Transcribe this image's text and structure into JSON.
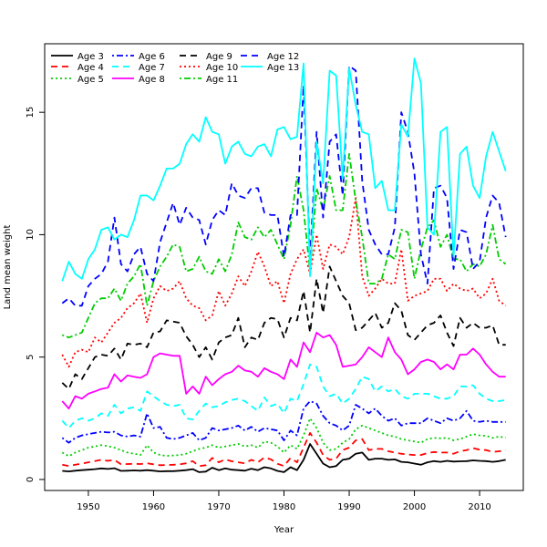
{
  "chart_data": {
    "type": "line",
    "title": "",
    "xlabel": "Year",
    "ylabel": "Land mean weight",
    "xlim": [
      1943.3,
      2016.7
    ],
    "ylim": [
      -0.45,
      17.8
    ],
    "xticks": [
      1950,
      1960,
      1970,
      1980,
      1990,
      2000,
      2010
    ],
    "yticks": [
      0,
      5,
      10,
      15
    ],
    "grid": false,
    "legend_position": "top-left",
    "x": [
      1946,
      1947,
      1948,
      1949,
      1950,
      1951,
      1952,
      1953,
      1954,
      1955,
      1956,
      1957,
      1958,
      1959,
      1960,
      1961,
      1962,
      1963,
      1964,
      1965,
      1966,
      1967,
      1968,
      1969,
      1970,
      1971,
      1972,
      1973,
      1974,
      1975,
      1976,
      1977,
      1978,
      1979,
      1980,
      1981,
      1982,
      1983,
      1984,
      1985,
      1986,
      1987,
      1988,
      1989,
      1990,
      1991,
      1992,
      1993,
      1994,
      1995,
      1996,
      1997,
      1998,
      1999,
      2000,
      2001,
      2002,
      2003,
      2004,
      2005,
      2006,
      2007,
      2008,
      2009,
      2010,
      2011,
      2012,
      2013,
      2014
    ],
    "series": [
      {
        "name": "Age 3",
        "color": "#000000",
        "dash": "solid",
        "values": [
          0.35,
          0.33,
          0.36,
          0.38,
          0.4,
          0.42,
          0.45,
          0.43,
          0.46,
          0.35,
          0.36,
          0.37,
          0.36,
          0.38,
          0.36,
          0.33,
          0.34,
          0.34,
          0.36,
          0.38,
          0.42,
          0.3,
          0.32,
          0.48,
          0.38,
          0.45,
          0.4,
          0.38,
          0.36,
          0.44,
          0.38,
          0.5,
          0.45,
          0.35,
          0.3,
          0.5,
          0.38,
          0.8,
          1.45,
          1.05,
          0.65,
          0.5,
          0.55,
          0.8,
          0.85,
          1.05,
          1.1,
          0.8,
          0.85,
          0.85,
          0.8,
          0.82,
          0.72,
          0.7,
          0.65,
          0.6,
          0.7,
          0.75,
          0.72,
          0.76,
          0.73,
          0.74,
          0.75,
          0.78,
          0.76,
          0.75,
          0.72,
          0.75,
          0.8
        ]
      },
      {
        "name": "Age 4",
        "color": "#ff0000",
        "dash": "dashed",
        "values": [
          0.6,
          0.55,
          0.6,
          0.65,
          0.7,
          0.75,
          0.8,
          0.76,
          0.8,
          0.62,
          0.63,
          0.64,
          0.63,
          0.66,
          0.62,
          0.58,
          0.59,
          0.6,
          0.62,
          0.66,
          0.75,
          0.55,
          0.58,
          0.88,
          0.7,
          0.82,
          0.74,
          0.7,
          0.66,
          0.8,
          0.7,
          0.9,
          0.82,
          0.64,
          0.55,
          0.88,
          0.7,
          1.3,
          1.9,
          1.5,
          1.0,
          0.8,
          0.85,
          1.2,
          1.3,
          1.6,
          1.65,
          1.2,
          1.25,
          1.25,
          1.15,
          1.1,
          1.05,
          1.02,
          1.0,
          1.0,
          1.08,
          1.12,
          1.1,
          1.1,
          1.05,
          1.15,
          1.2,
          1.28,
          1.22,
          1.2,
          1.12,
          1.15,
          1.2
        ]
      },
      {
        "name": "Age 5",
        "color": "#00cd00",
        "dash": "dotted",
        "values": [
          1.1,
          0.95,
          1.1,
          1.2,
          1.3,
          1.35,
          1.4,
          1.36,
          1.3,
          1.2,
          1.1,
          1.05,
          1.0,
          1.4,
          1.1,
          1.0,
          0.96,
          0.98,
          1.0,
          1.05,
          1.15,
          1.25,
          1.3,
          1.4,
          1.3,
          1.35,
          1.4,
          1.45,
          1.35,
          1.4,
          1.3,
          1.55,
          1.5,
          1.35,
          1.1,
          1.4,
          1.25,
          1.8,
          2.5,
          2.1,
          1.5,
          1.2,
          1.25,
          1.5,
          1.65,
          2.05,
          2.2,
          2.1,
          2.0,
          1.9,
          1.8,
          1.75,
          1.65,
          1.6,
          1.55,
          1.5,
          1.65,
          1.7,
          1.68,
          1.7,
          1.6,
          1.65,
          1.75,
          1.85,
          1.8,
          1.78,
          1.7,
          1.75,
          1.7
        ]
      },
      {
        "name": "Age 6",
        "color": "#0000ff",
        "dash": "dotdash",
        "values": [
          1.7,
          1.5,
          1.7,
          1.8,
          1.85,
          1.9,
          1.95,
          1.92,
          1.95,
          1.8,
          1.75,
          1.8,
          1.75,
          2.7,
          2.1,
          2.15,
          1.7,
          1.65,
          1.7,
          1.8,
          1.9,
          1.6,
          1.7,
          2.1,
          2.0,
          2.05,
          2.1,
          2.2,
          2.0,
          2.15,
          1.95,
          2.1,
          2.05,
          2.0,
          1.6,
          2.0,
          1.8,
          2.9,
          3.2,
          3.1,
          2.6,
          2.3,
          2.2,
          2.0,
          2.2,
          3.05,
          2.9,
          2.7,
          2.9,
          2.6,
          2.4,
          2.5,
          2.2,
          2.3,
          2.3,
          2.3,
          2.5,
          2.4,
          2.3,
          2.5,
          2.4,
          2.5,
          2.8,
          2.4,
          2.35,
          2.4,
          2.35,
          2.35,
          2.35
        ]
      },
      {
        "name": "Age 7",
        "color": "#00ffff",
        "dash": "dashed",
        "values": [
          2.4,
          2.1,
          2.4,
          2.5,
          2.4,
          2.5,
          2.7,
          2.6,
          3.05,
          2.7,
          2.9,
          2.95,
          2.8,
          3.6,
          3.4,
          3.2,
          3.05,
          3.0,
          3.05,
          2.5,
          2.45,
          2.8,
          3.1,
          2.95,
          3.0,
          3.15,
          3.25,
          3.3,
          3.2,
          3.0,
          2.8,
          3.35,
          3.0,
          3.1,
          2.7,
          3.3,
          3.2,
          3.9,
          4.7,
          4.6,
          3.8,
          3.4,
          3.5,
          3.1,
          3.3,
          3.7,
          4.2,
          4.1,
          3.6,
          3.8,
          3.6,
          3.7,
          3.4,
          3.3,
          3.5,
          3.5,
          3.5,
          3.4,
          3.3,
          3.3,
          3.4,
          3.8,
          3.8,
          3.85,
          3.5,
          3.3,
          3.2,
          3.2,
          3.25
        ]
      },
      {
        "name": "Age 8",
        "color": "#ff00ff",
        "dash": "solid",
        "values": [
          3.2,
          2.9,
          3.4,
          3.3,
          3.5,
          3.6,
          3.7,
          3.75,
          4.3,
          4.0,
          4.25,
          4.2,
          4.15,
          4.3,
          5.0,
          5.15,
          5.1,
          5.05,
          5.05,
          3.5,
          3.8,
          3.5,
          4.2,
          3.85,
          4.1,
          4.3,
          4.4,
          4.65,
          4.45,
          4.4,
          4.2,
          4.55,
          4.4,
          4.3,
          4.1,
          4.9,
          4.6,
          5.6,
          5.2,
          6.0,
          5.8,
          5.9,
          5.5,
          4.6,
          4.65,
          4.7,
          5.0,
          5.4,
          5.2,
          5.0,
          5.8,
          5.2,
          4.9,
          4.3,
          4.5,
          4.8,
          4.9,
          4.8,
          4.5,
          4.7,
          4.5,
          5.1,
          5.1,
          5.35,
          5.1,
          4.7,
          4.4,
          4.2,
          4.2
        ]
      },
      {
        "name": "Age 9",
        "color": "#000000",
        "dash": "dashed",
        "values": [
          3.95,
          3.7,
          4.3,
          4.1,
          4.55,
          5.0,
          5.1,
          5.05,
          5.35,
          4.9,
          5.55,
          5.5,
          5.55,
          5.4,
          6.0,
          6.05,
          6.5,
          6.45,
          6.4,
          5.85,
          5.5,
          5.0,
          5.4,
          4.9,
          5.6,
          5.8,
          5.9,
          6.6,
          5.4,
          5.8,
          5.7,
          6.4,
          6.6,
          6.55,
          5.8,
          6.6,
          6.5,
          7.7,
          6.0,
          8.2,
          6.8,
          8.7,
          8.1,
          7.5,
          7.2,
          6.1,
          6.2,
          6.5,
          6.8,
          6.2,
          6.4,
          7.2,
          6.9,
          5.9,
          5.7,
          6.0,
          6.3,
          6.4,
          6.7,
          6.0,
          5.45,
          6.6,
          6.2,
          6.4,
          6.2,
          6.2,
          6.3,
          5.5,
          5.5
        ]
      },
      {
        "name": "Age 10",
        "color": "#ff0000",
        "dash": "dotted",
        "values": [
          5.1,
          4.6,
          5.2,
          5.3,
          5.2,
          5.8,
          5.6,
          6.0,
          6.4,
          6.6,
          7.0,
          7.2,
          7.6,
          6.4,
          7.4,
          7.9,
          7.7,
          7.8,
          8.1,
          7.4,
          7.1,
          7.0,
          6.5,
          6.7,
          7.7,
          7.1,
          7.6,
          8.3,
          7.9,
          8.5,
          9.3,
          8.7,
          7.9,
          8.1,
          7.2,
          8.4,
          9.0,
          9.4,
          8.4,
          10.0,
          8.6,
          9.6,
          9.5,
          9.2,
          9.9,
          11.5,
          8.3,
          7.5,
          7.8,
          8.2,
          8.0,
          8.0,
          9.4,
          7.3,
          7.5,
          7.6,
          7.7,
          8.2,
          8.2,
          7.7,
          8.0,
          7.8,
          7.7,
          7.8,
          7.4,
          7.6,
          8.2,
          7.3,
          7.1
        ]
      },
      {
        "name": "Age 11",
        "color": "#00cd00",
        "dash": "dotdash",
        "values": [
          5.9,
          5.8,
          5.9,
          6.0,
          6.6,
          7.2,
          7.4,
          7.4,
          7.8,
          7.3,
          8.0,
          8.3,
          8.8,
          7.1,
          8.1,
          8.7,
          9.1,
          9.6,
          9.5,
          8.5,
          8.6,
          9.1,
          8.5,
          8.4,
          9.0,
          8.5,
          9.2,
          10.5,
          9.9,
          9.8,
          10.3,
          9.9,
          10.2,
          9.6,
          9.0,
          10.4,
          12.4,
          11.0,
          8.5,
          11.9,
          11.0,
          12.4,
          11.0,
          11.0,
          13.3,
          11.4,
          9.9,
          8.0,
          8.0,
          8.2,
          9.2,
          9.0,
          10.2,
          10.1,
          8.2,
          9.4,
          10.3,
          10.6,
          9.5,
          10.0,
          9.0,
          9.0,
          8.5,
          8.8,
          8.7,
          9.2,
          10.4,
          9.0,
          8.8
        ]
      },
      {
        "name": "Age 12",
        "color": "#0000ff",
        "dash": "dashed",
        "values": [
          7.2,
          7.4,
          7.1,
          7.1,
          7.9,
          8.2,
          8.4,
          8.9,
          10.7,
          8.8,
          8.5,
          9.2,
          9.5,
          8.4,
          8.1,
          9.7,
          10.5,
          11.3,
          10.4,
          11.1,
          10.7,
          10.6,
          9.6,
          10.6,
          11.0,
          10.8,
          12.1,
          11.6,
          11.5,
          11.9,
          11.9,
          10.9,
          10.8,
          10.8,
          9.1,
          10.8,
          10.8,
          16.1,
          9.0,
          14.2,
          10.7,
          13.8,
          14.1,
          11.6,
          16.9,
          16.7,
          12.2,
          10.2,
          9.6,
          9.2,
          9.2,
          10.3,
          15.0,
          14.2,
          12.5,
          9.2,
          8.0,
          11.9,
          12.0,
          11.5,
          8.6,
          10.2,
          10.1,
          8.6,
          8.9,
          10.7,
          11.6,
          11.3,
          9.9
        ]
      },
      {
        "name": "Age 13",
        "color": "#00ffff",
        "dash": "solid",
        "values": [
          8.1,
          8.9,
          8.4,
          8.2,
          9.0,
          9.4,
          10.2,
          10.3,
          9.8,
          10.0,
          9.9,
          10.6,
          11.6,
          11.6,
          11.4,
          12.0,
          12.7,
          12.7,
          12.9,
          13.7,
          14.1,
          13.8,
          14.8,
          14.2,
          14.1,
          12.9,
          13.6,
          13.8,
          13.3,
          13.2,
          13.6,
          13.7,
          13.2,
          14.3,
          14.4,
          13.9,
          14.0,
          17.0,
          8.3,
          13.8,
          12.1,
          16.7,
          16.5,
          12.3,
          16.8,
          15.3,
          14.2,
          14.1,
          11.9,
          12.2,
          11.0,
          11.0,
          14.5,
          14.0,
          17.2,
          16.2,
          10.3,
          10.0,
          14.2,
          14.4,
          9.1,
          13.3,
          13.6,
          12.0,
          11.5,
          13.2,
          14.2,
          13.4,
          12.6
        ]
      }
    ]
  }
}
